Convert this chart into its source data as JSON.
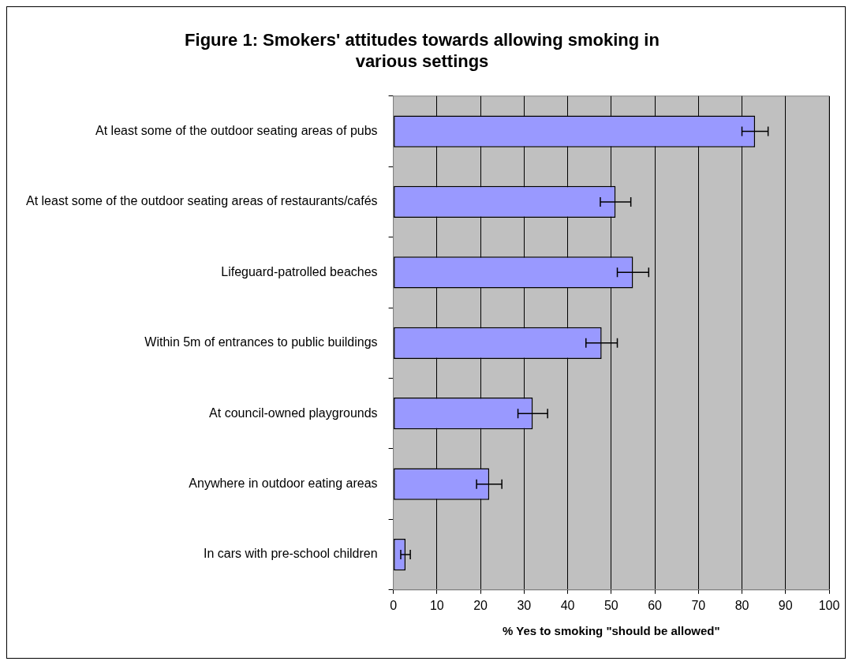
{
  "chart_data": {
    "type": "bar",
    "orientation": "horizontal",
    "title": "Figure 1: Smokers' attitudes towards allowing smoking in various settings",
    "xlabel": "% Yes to smoking \"should be allowed\"",
    "categories": [
      "At least some of the outdoor seating areas of pubs",
      "At least some of the outdoor seating areas of restaurants/cafés",
      "Lifeguard-patrolled beaches",
      "Within 5m of entrances to public buildings",
      "At council-owned playgrounds",
      "Anywhere in outdoor eating areas",
      "In cars with pre-school children"
    ],
    "values": [
      83,
      51,
      55,
      47.8,
      32,
      22,
      2.8
    ],
    "errors": [
      3,
      3.5,
      3.6,
      3.6,
      3.4,
      2.9,
      1.1
    ],
    "color": "#9999ff",
    "xlim": [
      0,
      100
    ],
    "xticks": [
      0,
      10,
      20,
      30,
      40,
      50,
      60,
      70,
      80,
      90,
      100
    ],
    "grid": "x",
    "legend": false
  }
}
